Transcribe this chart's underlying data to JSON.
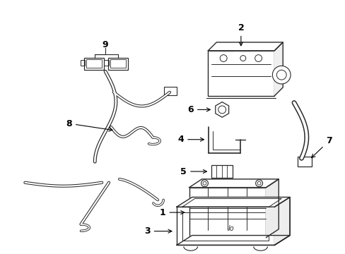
{
  "background_color": "#ffffff",
  "line_color": "#2a2a2a",
  "fig_width": 4.89,
  "fig_height": 3.6,
  "dpi": 100
}
